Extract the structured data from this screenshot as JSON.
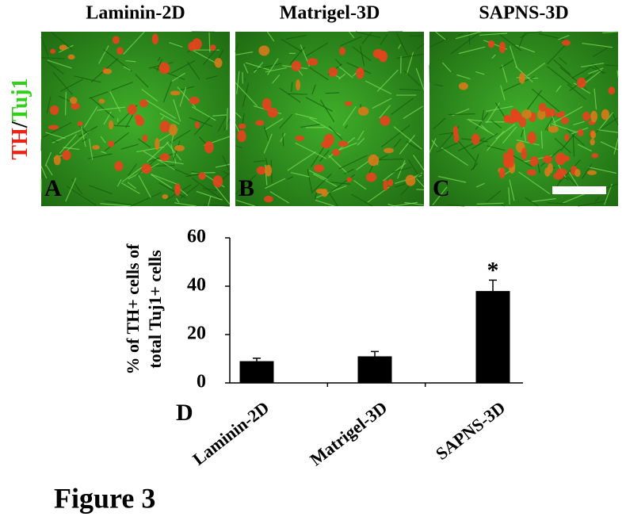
{
  "figure": {
    "panel_titles": [
      "Laminin-2D",
      "Matrigel-3D",
      "SAPNS-3D"
    ],
    "panel_letters": [
      "A",
      "B",
      "C"
    ],
    "stain_label": {
      "red": "TH",
      "separator": "/",
      "green": "Tuj1"
    },
    "caption": "Figure 3"
  },
  "chart_data": {
    "type": "bar",
    "panel_letter": "D",
    "y_label": [
      "% of TH+ cells of",
      "total Tuj1+ cells"
    ],
    "categories": [
      "Laminin-2D",
      "Matrigel-3D",
      "SAPNS-3D"
    ],
    "values": [
      9,
      11,
      38
    ],
    "errors": [
      1.2,
      2,
      4.5
    ],
    "color": "#000000",
    "ylim": [
      0,
      60
    ],
    "yticks": [
      0,
      20,
      40,
      60
    ],
    "annotations": [
      {
        "category_index": 2,
        "text": "*"
      }
    ]
  }
}
